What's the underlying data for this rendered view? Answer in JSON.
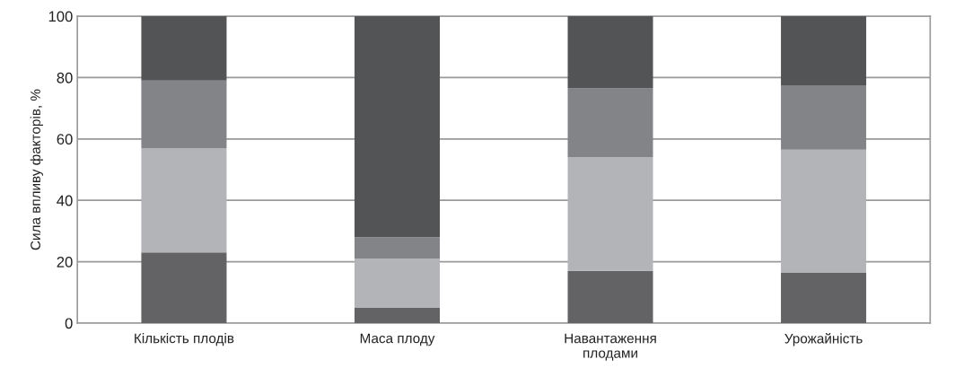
{
  "chart_data": {
    "type": "bar",
    "stacked": true,
    "ylabel": "Сила впливу факторів, %",
    "categories": [
      "Кількість плодів",
      "Маса плоду",
      "Навантаження\nплодами",
      "Урожайність"
    ],
    "series": [
      {
        "color": "#636366",
        "values": [
          23,
          5,
          17,
          16.5
        ]
      },
      {
        "color": "#b3b4b7",
        "values": [
          34,
          16,
          37,
          40
        ]
      },
      {
        "color": "#838487",
        "values": [
          22,
          7,
          22.5,
          21
        ]
      },
      {
        "color": "#535456",
        "values": [
          21,
          72,
          23.5,
          22.5
        ]
      }
    ],
    "ylim": [
      0,
      100
    ],
    "yticks": [
      0,
      20,
      40,
      60,
      80,
      100
    ],
    "grid": "y",
    "legend": false
  }
}
